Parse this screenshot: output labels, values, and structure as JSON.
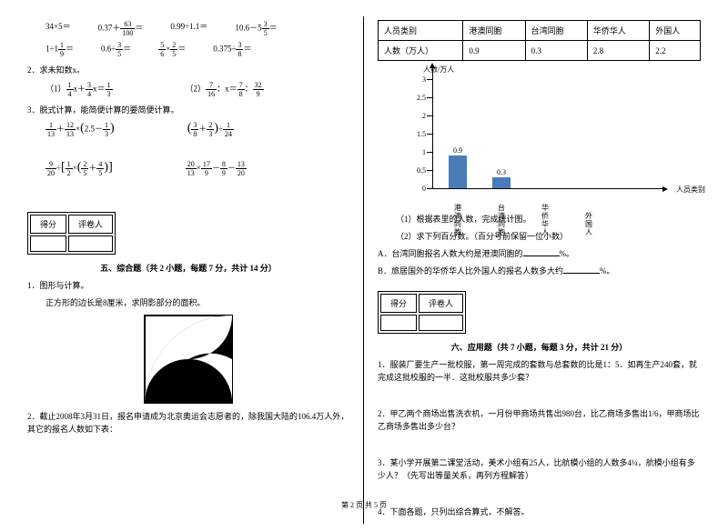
{
  "footer": "第 2 页 共 5 页",
  "left": {
    "eq_row1": [
      "34×5＝",
      "0.37＋",
      "＝",
      "0.99÷1.1＝",
      "10.6－5",
      "＝"
    ],
    "frac_63_100": {
      "n": "63",
      "d": "100"
    },
    "frac_3_5": {
      "n": "3",
      "d": "5"
    },
    "eq_row2_a": "1÷1",
    "frac_1_9": {
      "n": "1",
      "d": "9"
    },
    "eq_row2_b": "＝",
    "eq_row2_c": "0.6÷",
    "frac_3_5b": {
      "n": "3",
      "d": "5"
    },
    "eq_row2_d": "＝",
    "frac_5_6": {
      "n": "5",
      "d": "6"
    },
    "eq_row2_e": "×",
    "frac_2_5": {
      "n": "2",
      "d": "5"
    },
    "eq_row2_f": "＝",
    "eq_row2_g": "0.375÷",
    "frac_3_8": {
      "n": "3",
      "d": "8"
    },
    "q2": "2．求未知数x。",
    "q2_1a": "（1）",
    "frac_1_4": {
      "n": "1",
      "d": "4"
    },
    "q2_1b": "x＋",
    "frac_3_4": {
      "n": "3",
      "d": "4"
    },
    "q2_1c": "x＝",
    "frac_1_3": {
      "n": "1",
      "d": "3"
    },
    "q2_2a": "（2）",
    "frac_7_16": {
      "n": "7",
      "d": "16"
    },
    "q2_2b": "：x＝",
    "frac_7_8": {
      "n": "7",
      "d": "8"
    },
    "q2_2c": "：",
    "frac_32_9": {
      "n": "32",
      "d": "9"
    },
    "q3": "3．脱式计算，能简便计算的要简便计算。",
    "q3_1": {
      "f1": {
        "n": "1",
        "d": "13"
      },
      "op1": "＋",
      "f2": {
        "n": "12",
        "d": "13"
      },
      "op2": "×",
      "lp": "(",
      "f3": "2.5",
      "op3": "－",
      "f4": {
        "n": "1",
        "d": "3"
      },
      "rp": ")"
    },
    "q3_2": {
      "lp": "(",
      "f1": {
        "n": "3",
        "d": "8"
      },
      "op1": "＋",
      "f2": {
        "n": "2",
        "d": "3"
      },
      "rp": ")",
      "op2": "÷",
      "f3": {
        "n": "1",
        "d": "24"
      }
    },
    "q3_3": {
      "f1": {
        "n": "9",
        "d": "20"
      },
      "op1": "÷",
      "lb": "[",
      "f2": {
        "n": "1",
        "d": "2"
      },
      "op2": "×",
      "lp": "(",
      "f3": {
        "n": "2",
        "d": "5"
      },
      "op3": "＋",
      "f4": {
        "n": "4",
        "d": "5"
      },
      "rp": ")",
      "rb": "]"
    },
    "q3_4": {
      "f1": {
        "n": "20",
        "d": "13"
      },
      "op1": "×",
      "f2": {
        "n": "17",
        "d": "9"
      },
      "op2": "－",
      "f3": {
        "n": "8",
        "d": "9"
      },
      "op3": "－",
      "f4": {
        "n": "13",
        "d": "20"
      }
    },
    "score_labels": [
      "得分",
      "评卷人"
    ],
    "section5": "五、综合题（共 2 小题，每题 7 分，共计 14 分）",
    "s5_q1": "1．图形与计算。",
    "s5_q1_text": "正方形的边长是8厘米，求阴影部分的面积。",
    "s5_q2": "2．截止2008年3月31日，报名申请成为北京奥运会志愿者的，除我国大陆的106.4万人外，其它的报名人数如下表："
  },
  "right": {
    "table_headers": [
      "人员类别",
      "港澳同胞",
      "台湾同胞",
      "华侨华人",
      "外国人"
    ],
    "table_row_label": "人数（万人）",
    "table_values": [
      "0.9",
      "0.3",
      "2.8",
      "2.2"
    ],
    "chart": {
      "y_title": "人数/万人",
      "x_title": "人员类别",
      "y_max": 3,
      "y_step": 0.5,
      "y_ticks": [
        "0",
        "0.5",
        "1",
        "1.5",
        "2",
        "2.5",
        "3"
      ],
      "bars": [
        {
          "label": "港澳同胞",
          "value": 0.9,
          "show_val": "0.9"
        },
        {
          "label": "台湾同胞",
          "value": 0.3,
          "show_val": "0.3"
        },
        {
          "label": "华侨华人",
          "value": null,
          "show_val": ""
        },
        {
          "label": "外国人",
          "value": null,
          "show_val": ""
        }
      ],
      "bar_color": "#4a7db8"
    },
    "r_q1": "（1）根据表里的人数，完成统计图。",
    "r_q2": "（2）求下列百分数。（百分号前保留一位小数）",
    "r_qa": "A．台湾同胞报名人数大约是港澳同胞的",
    "r_qa2": "%。",
    "r_qb": "B．旅居国外的华侨华人比外国人的报名人数多大约",
    "r_qb2": "%。",
    "score_labels": [
      "得分",
      "评卷人"
    ],
    "section6": "六、应用题（共 7 小题，每题 3 分，共计 21 分）",
    "s6_q1": "1．服装厂要生产一批校服，第一周完成的套数与总套数的比是1：5．如再生产240套，就完成这批校服的一半．这批校服共多少套？",
    "s6_q2": "2．甲乙两个商场出售洗衣机，一月份甲商场共售出980台，比乙商场多售出1/6，甲商场比乙商场多售出多少台？",
    "s6_q3": "3．某小学开展第二课堂活动，美术小组有25人，比航模小组的人数多4¼，航模小组有多少人？（先写出等量关系，再列方程解答）",
    "s6_q4": "4．下面各题，只列出综合算式，不解答。"
  }
}
